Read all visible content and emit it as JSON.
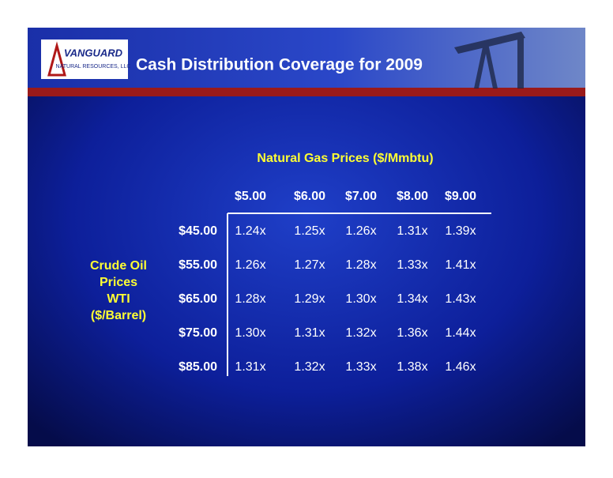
{
  "header": {
    "title": "Cash Distribution Coverage for 2009",
    "logo_name": "VANGUARD",
    "logo_sub": "NATURAL RESOURCES, LLC"
  },
  "table": {
    "caption": "Natural Gas Prices  ($/Mmbtu)",
    "side_label": [
      "Crude Oil",
      "Prices",
      "WTI",
      "($/Barrel)"
    ],
    "columns": [
      "$5.00",
      "$6.00",
      "$7.00",
      "$8.00",
      "$9.00"
    ],
    "row_headers": [
      "$45.00",
      "$55.00",
      "$65.00",
      "$75.00",
      "$85.00"
    ],
    "rows": [
      [
        "1.24x",
        "1.25x",
        "1.26x",
        "1.31x",
        "1.39x"
      ],
      [
        "1.26x",
        "1.27x",
        "1.28x",
        "1.33x",
        "1.41x"
      ],
      [
        "1.28x",
        "1.29x",
        "1.30x",
        "1.34x",
        "1.43x"
      ],
      [
        "1.30x",
        "1.31x",
        "1.32x",
        "1.36x",
        "1.44x"
      ],
      [
        "1.31x",
        "1.32x",
        "1.33x",
        "1.38x",
        "1.46x"
      ]
    ]
  }
}
